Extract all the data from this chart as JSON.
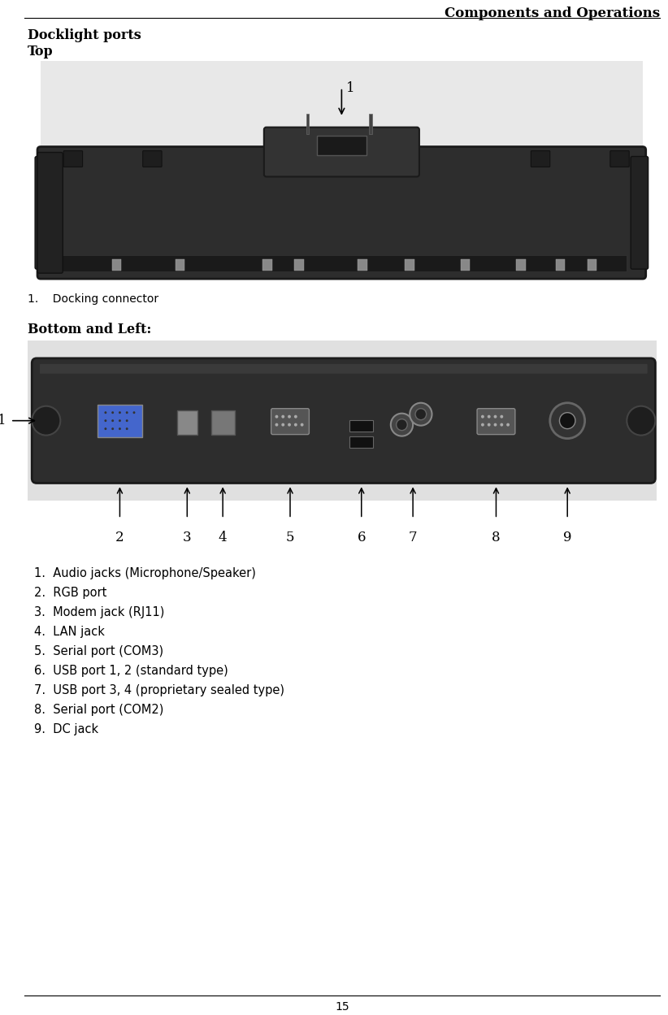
{
  "header_text": "Components and Operations",
  "title1": "Docklight ports",
  "title2": "Top",
  "title3": "Bottom and Left:",
  "docking_label": "1.    Docking connector",
  "top_annotation_num": "1",
  "bottom_annotation_num": "1",
  "bottom_numbers": [
    "2",
    "3",
    "4",
    "5",
    "6",
    "7",
    "8",
    "9"
  ],
  "list_items": [
    "1.  Audio jacks (Microphone/Speaker)",
    "2.  RGB port",
    "3.  Modem jack (RJ11)",
    "4.  LAN jack",
    "5.  Serial port (COM3)",
    "6.  USB port 1, 2 (standard type)",
    "7.  USB port 3, 4 (proprietary sealed type)",
    "8.  Serial port (COM2)",
    "9.  DC jack"
  ],
  "page_number": "15",
  "bg_color": "#ffffff",
  "text_color": "#000000"
}
